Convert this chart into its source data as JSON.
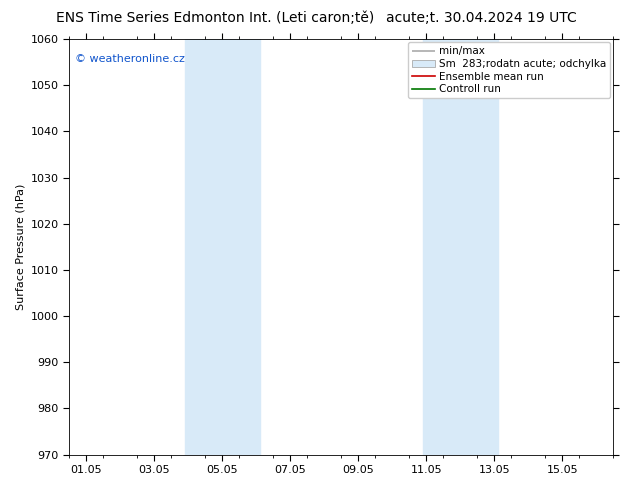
{
  "title_left": "ENS Time Series Edmonton Int. (Leti caron;tě)",
  "title_right": "acute;t. 30.04.2024 19 UTC",
  "ylabel": "Surface Pressure (hPa)",
  "watermark": "© weatheronline.cz",
  "ylim": [
    970,
    1060
  ],
  "yticks": [
    970,
    980,
    990,
    1000,
    1010,
    1020,
    1030,
    1040,
    1050,
    1060
  ],
  "xtick_labels": [
    "01.05",
    "03.05",
    "05.05",
    "07.05",
    "09.05",
    "11.05",
    "13.05",
    "15.05"
  ],
  "xtick_positions": [
    1,
    3,
    5,
    7,
    9,
    11,
    13,
    15
  ],
  "xlim": [
    0.5,
    16.5
  ],
  "shade_regions": [
    {
      "xmin": 3.9,
      "xmax": 6.1
    },
    {
      "xmin": 10.9,
      "xmax": 13.1
    }
  ],
  "shade_color": "#d8eaf8",
  "bg_color": "#ffffff",
  "legend_labels": [
    "min/max",
    "Sm  283;rodatn acute; odchylka",
    "Ensemble mean run",
    "Controll run"
  ],
  "legend_line_color_0": "#aaaaaa",
  "legend_patch_color": "#d8eaf8",
  "legend_line_color_2": "#cc0000",
  "legend_line_color_3": "#007700",
  "watermark_color": "#1155cc",
  "title_fontsize": 10,
  "tick_fontsize": 8,
  "ylabel_fontsize": 8,
  "legend_fontsize": 7.5
}
